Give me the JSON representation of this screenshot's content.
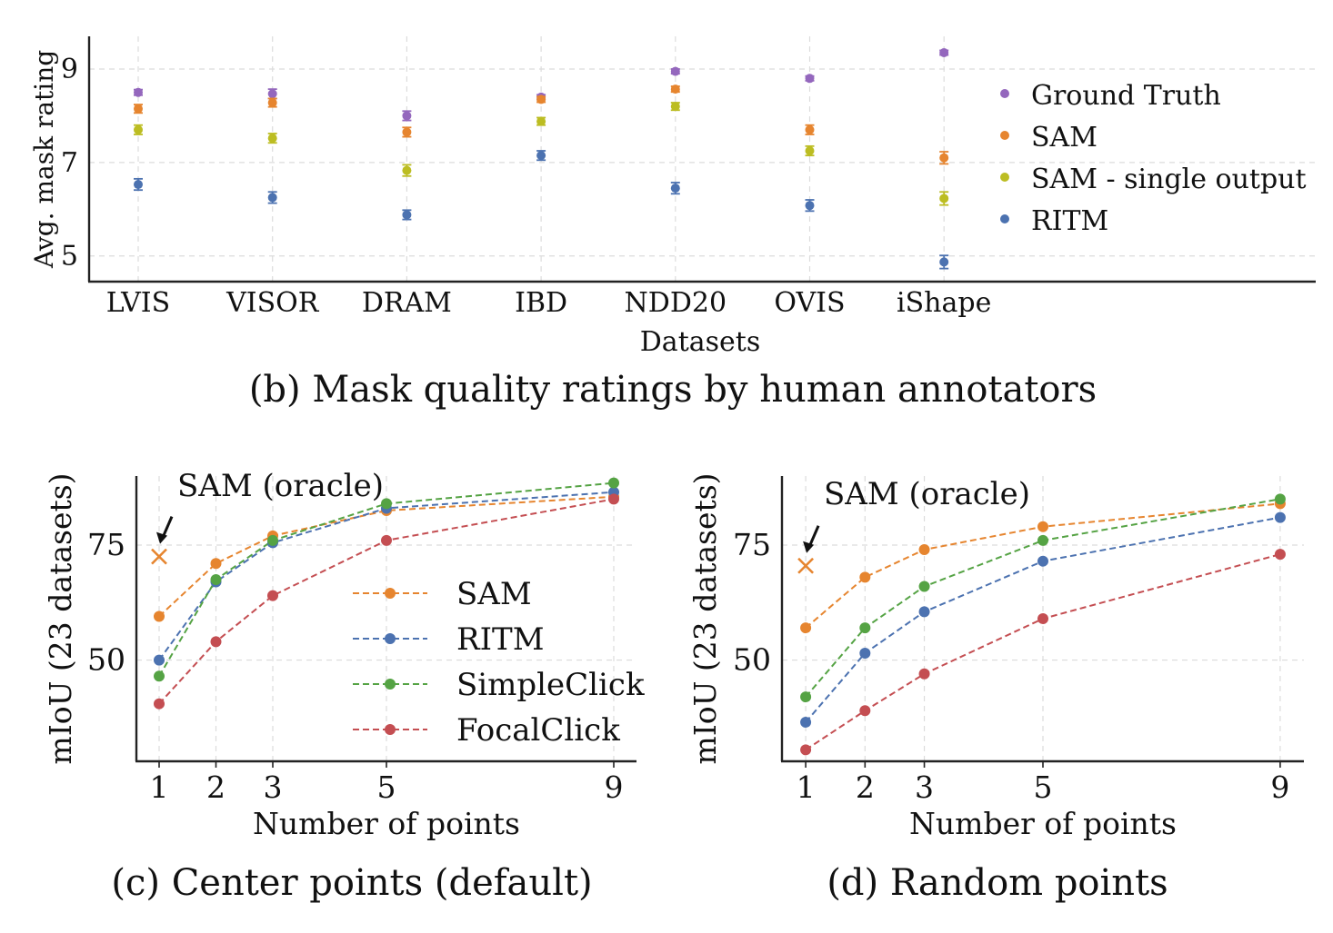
{
  "chart_data": [
    {
      "type": "scatter",
      "id": "b",
      "caption": "(b) Mask quality ratings by human annotators",
      "xlabel": "Datasets",
      "ylabel": "Avg. mask rating",
      "ylim": [
        4.45,
        9.7
      ],
      "yticks": [
        5,
        7,
        9
      ],
      "grid": true,
      "legend_position": "right",
      "categories": [
        "LVIS",
        "VISOR",
        "DRAM",
        "IBD",
        "NDD20",
        "OVIS",
        "iShape"
      ],
      "series": [
        {
          "name": "Ground Truth",
          "color": "#9467bd",
          "values": [
            8.5,
            8.47,
            8.0,
            8.4,
            8.95,
            8.8,
            9.35
          ],
          "err": [
            0.06,
            0.1,
            0.1,
            0.05,
            0.05,
            0.05,
            0.05
          ]
        },
        {
          "name": "SAM",
          "color": "#e6852f",
          "values": [
            8.15,
            8.28,
            7.65,
            8.35,
            8.57,
            7.7,
            7.1
          ],
          "err": [
            0.09,
            0.09,
            0.1,
            0.06,
            0.06,
            0.1,
            0.13
          ]
        },
        {
          "name": "SAM - single output",
          "color": "#bcbd22",
          "values": [
            7.7,
            7.52,
            6.83,
            7.88,
            8.2,
            7.25,
            6.23
          ],
          "err": [
            0.1,
            0.1,
            0.12,
            0.08,
            0.08,
            0.1,
            0.14
          ]
        },
        {
          "name": "RITM",
          "color": "#4c72b0",
          "values": [
            6.53,
            6.25,
            5.88,
            7.15,
            6.45,
            6.08,
            4.87
          ],
          "err": [
            0.12,
            0.12,
            0.1,
            0.1,
            0.12,
            0.12,
            0.14
          ]
        }
      ]
    },
    {
      "type": "line",
      "id": "c",
      "caption": "(c) Center points (default)",
      "xlabel": "Number of points",
      "ylabel": "mIoU (23 datasets)",
      "x": [
        1,
        2,
        3,
        5,
        9
      ],
      "xlim": [
        0.6,
        9.4
      ],
      "ylim": [
        28,
        90
      ],
      "yticks": [
        50,
        75
      ],
      "grid": true,
      "legend_position": "center-right",
      "annotation": {
        "text": "SAM (oracle)",
        "x": 1,
        "y": 72.5,
        "color": "#e6852f"
      },
      "series": [
        {
          "name": "SAM",
          "color": "#e6852f",
          "values": [
            59.5,
            71,
            77,
            82.5,
            85.5
          ]
        },
        {
          "name": "RITM",
          "color": "#4c72b0",
          "values": [
            50,
            67,
            75.5,
            83,
            86.5
          ]
        },
        {
          "name": "SimpleClick",
          "color": "#55a344",
          "values": [
            46.5,
            67.5,
            76,
            84,
            88.5
          ]
        },
        {
          "name": "FocalClick",
          "color": "#c44e52",
          "values": [
            40.5,
            54,
            64,
            76,
            85
          ]
        }
      ]
    },
    {
      "type": "line",
      "id": "d",
      "caption": "(d) Random points",
      "xlabel": "Number of points",
      "ylabel": "mIoU (23 datasets)",
      "x": [
        1,
        2,
        3,
        5,
        9
      ],
      "xlim": [
        0.6,
        9.4
      ],
      "ylim": [
        28,
        90
      ],
      "yticks": [
        50,
        75
      ],
      "grid": true,
      "annotation": {
        "text": "SAM (oracle)",
        "x": 1,
        "y": 70.5,
        "color": "#e6852f"
      },
      "series": [
        {
          "name": "SAM",
          "color": "#e6852f",
          "values": [
            57,
            68,
            74,
            79,
            84
          ]
        },
        {
          "name": "RITM",
          "color": "#4c72b0",
          "values": [
            36.5,
            51.5,
            60.5,
            71.5,
            81
          ]
        },
        {
          "name": "SimpleClick",
          "color": "#55a344",
          "values": [
            42,
            57,
            66,
            76,
            85
          ]
        },
        {
          "name": "FocalClick",
          "color": "#c44e52",
          "values": [
            30.5,
            39,
            47,
            59,
            73
          ]
        }
      ]
    }
  ]
}
